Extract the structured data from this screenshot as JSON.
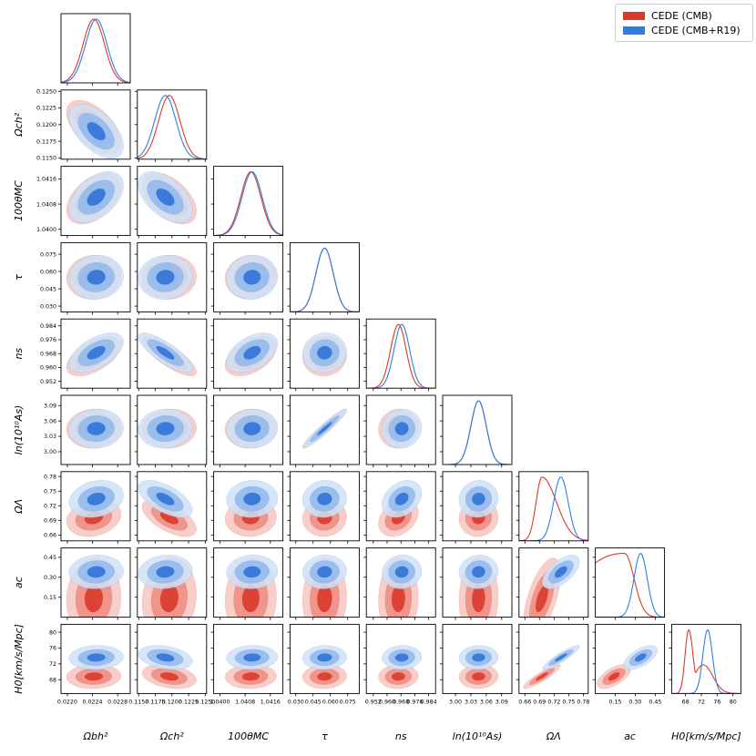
{
  "chart_data": {
    "type": "triangle-corner-plot",
    "colors": {
      "cmb": "#d93a2b",
      "cmb_r19": "#2e7fe0"
    },
    "legend": [
      {
        "label": "CEDE (CMB)",
        "color": "#d93a2b"
      },
      {
        "label": "CEDE (CMB+R19)",
        "color": "#2e7fe0"
      }
    ],
    "parameters": [
      {
        "label": "Ω<sub>b</sub>h²",
        "text": "Ωbh²",
        "range": [
          0.0219,
          0.023
        ],
        "ticks": [
          "0.0220",
          "0.0224",
          "0.0228"
        ],
        "tick_values": [
          0.022,
          0.0224,
          0.0228
        ],
        "mean": {
          "cmb": 0.02242,
          "cmb_r19": 0.02246
        },
        "sigma": 0.00017
      },
      {
        "label": "Ωch²",
        "text": "Ωch²",
        "range": [
          0.1148,
          0.1252
        ],
        "ticks": [
          "0.1150",
          "0.1175",
          "0.1200",
          "0.1225",
          "0.1250"
        ],
        "tick_values": [
          0.115,
          0.1175,
          0.12,
          0.1225,
          0.125
        ],
        "mean": {
          "cmb": 0.1196,
          "cmb_r19": 0.119
        },
        "sigma": 0.0016
      },
      {
        "label": "100θMC",
        "text": "100θMC",
        "range": [
          1.0398,
          1.042
        ],
        "ticks": [
          "1.0400",
          "1.0408",
          "1.0416"
        ],
        "tick_values": [
          1.04,
          1.0408,
          1.0416
        ],
        "mean": {
          "cmb": 1.04098,
          "cmb_r19": 1.04102
        },
        "sigma": 0.00032
      },
      {
        "label": "τ",
        "text": "τ",
        "range": [
          0.025,
          0.085
        ],
        "ticks": [
          "0.030",
          "0.045",
          "0.060",
          "0.075"
        ],
        "tick_values": [
          0.03,
          0.045,
          0.06,
          0.075
        ],
        "mean": {
          "cmb": 0.055,
          "cmb_r19": 0.055
        },
        "sigma": 0.0075
      },
      {
        "label": "ns",
        "text": "ns",
        "range": [
          0.948,
          0.988
        ],
        "ticks": [
          "0.952",
          "0.960",
          "0.968",
          "0.976",
          "0.984"
        ],
        "tick_values": [
          0.952,
          0.96,
          0.968,
          0.976,
          0.984
        ],
        "mean": {
          "cmb": 0.9665,
          "cmb_r19": 0.9685
        },
        "sigma": 0.0045
      },
      {
        "label": "ln(10¹⁰As)",
        "text": "ln(10¹⁰As)",
        "range": [
          2.975,
          3.11
        ],
        "ticks": [
          "3.00",
          "3.03",
          "3.06",
          "3.09"
        ],
        "tick_values": [
          3.0,
          3.03,
          3.06,
          3.09
        ],
        "mean": {
          "cmb": 3.045,
          "cmb_r19": 3.045
        },
        "sigma": 0.015
      },
      {
        "label": "ΩΛ",
        "text": "ΩΛ",
        "range": [
          0.648,
          0.79
        ],
        "ticks": [
          "0.66",
          "0.69",
          "0.72",
          "0.75",
          "0.78"
        ],
        "tick_values": [
          0.66,
          0.69,
          0.72,
          0.75,
          0.78
        ],
        "mean": {
          "cmb": 0.695,
          "cmb_r19": 0.734
        },
        "sigma": 0.015
      },
      {
        "label": "ac",
        "text": "ac",
        "range": [
          0.0,
          0.52
        ],
        "ticks": [
          "0.15",
          "0.30",
          "0.45"
        ],
        "tick_values": [
          0.15,
          0.3,
          0.45
        ],
        "mean": {
          "cmb": 0.14,
          "cmb_r19": 0.34
        },
        "sigma": 0.05
      },
      {
        "label": "H0[km/s/Mpc]",
        "text": "H0[km/s/Mpc]",
        "range": [
          64.5,
          82.0
        ],
        "ticks": [
          "68",
          "72",
          "76",
          "80"
        ],
        "tick_values": [
          68,
          72,
          76,
          80
        ],
        "mean": {
          "cmb": 68.8,
          "cmb_r19": 73.6
        },
        "sigma": 1.2
      }
    ],
    "x_labels": [
      "Ωbh²",
      "Ωch²",
      "100θMC",
      "τ",
      "ns",
      "ln(10¹⁰As)",
      "ΩΛ",
      "ac",
      "H0[km/s/Mpc]"
    ],
    "y_labels": [
      "",
      "Ωch²",
      "100θMC",
      "τ",
      "ns",
      "ln(10¹⁰As)",
      "ΩΛ",
      "ac",
      "H0[km/s/Mpc]"
    ]
  }
}
